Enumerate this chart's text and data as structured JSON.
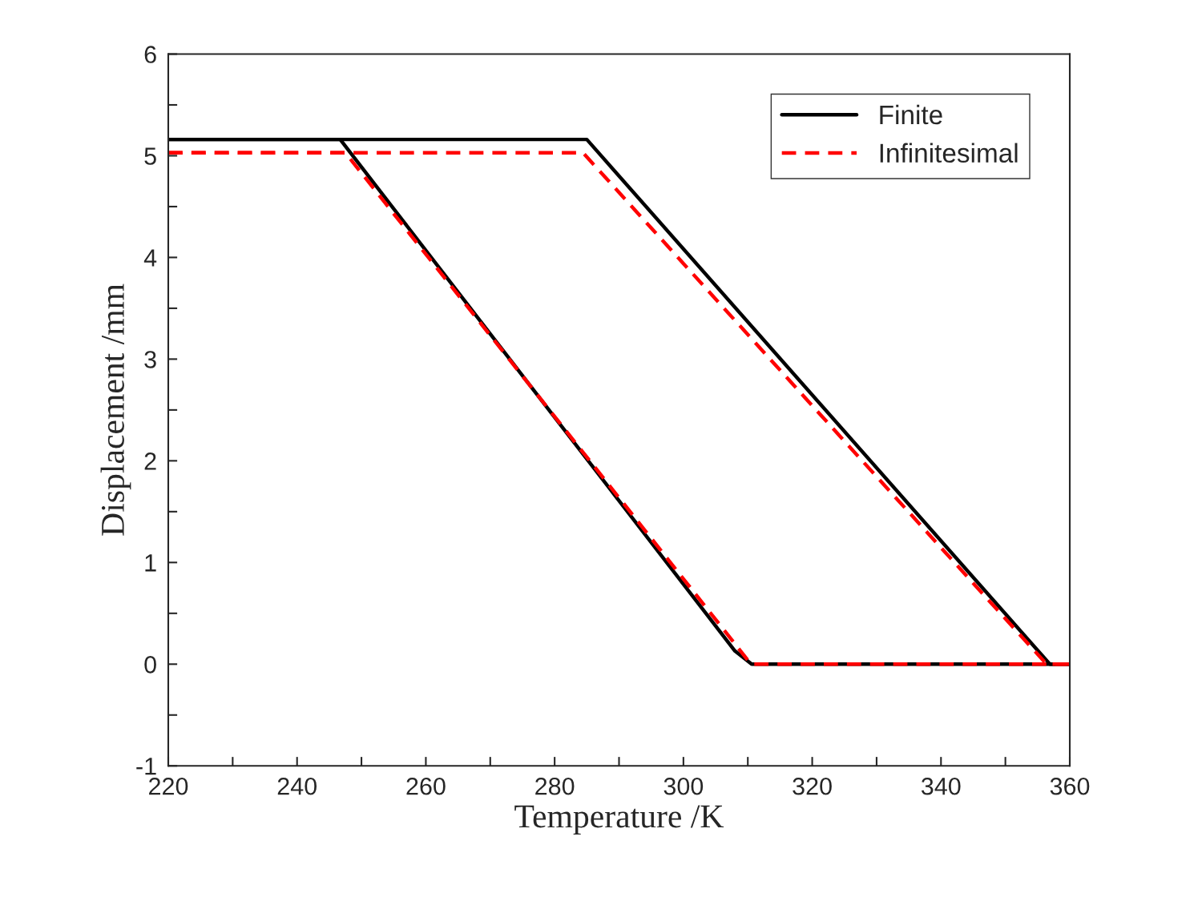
{
  "chart_data": {
    "type": "line",
    "xlabel": "Temperature /K",
    "ylabel": "Displacement /mm",
    "series": [
      {
        "name": "Finite",
        "color": "#000000",
        "line_style": "solid",
        "x": [
          220,
          285,
          356.9,
          360
        ],
        "values": [
          5.16,
          5.16,
          0,
          0
        ]
      },
      {
        "color": "#000000",
        "line_style": "solid",
        "x": [
          220,
          246.7,
          308,
          310.6,
          360
        ],
        "values": [
          5.16,
          5.16,
          0.13,
          0,
          0
        ]
      },
      {
        "name": "Infinitesimal",
        "color": "#ff0000",
        "line_style": "dashed",
        "x": [
          220,
          284.4,
          356.4,
          360
        ],
        "values": [
          5.03,
          5.03,
          0,
          0
        ]
      },
      {
        "color": "#ff0000",
        "line_style": "dashed",
        "x": [
          220,
          247.5,
          310.5,
          360
        ],
        "values": [
          5.03,
          5.03,
          0,
          0
        ]
      }
    ],
    "xlim": [
      220,
      360
    ],
    "ylim": [
      -1,
      6
    ],
    "xticks": [
      220,
      {
        "value": 230,
        "label": null
      },
      240,
      {
        "value": 250,
        "label": null
      },
      260,
      {
        "value": 270,
        "label": null
      },
      280,
      {
        "value": 290,
        "label": null
      },
      300,
      {
        "value": 310,
        "label": null
      },
      320,
      {
        "value": 330,
        "label": null
      },
      340,
      {
        "value": 350,
        "label": null
      },
      360
    ],
    "yticks": [
      -1,
      {
        "value": -0.5,
        "label": null
      },
      0,
      {
        "value": 0.5,
        "label": null
      },
      1,
      {
        "value": 1.5,
        "label": null
      },
      2,
      {
        "value": 2.5,
        "label": null
      },
      3,
      {
        "value": 3.5,
        "label": null
      },
      4,
      {
        "value": 4.5,
        "label": null
      },
      5,
      {
        "value": 5.5,
        "label": null
      },
      6
    ],
    "grid": false,
    "legend": "top right",
    "marker": "none"
  }
}
